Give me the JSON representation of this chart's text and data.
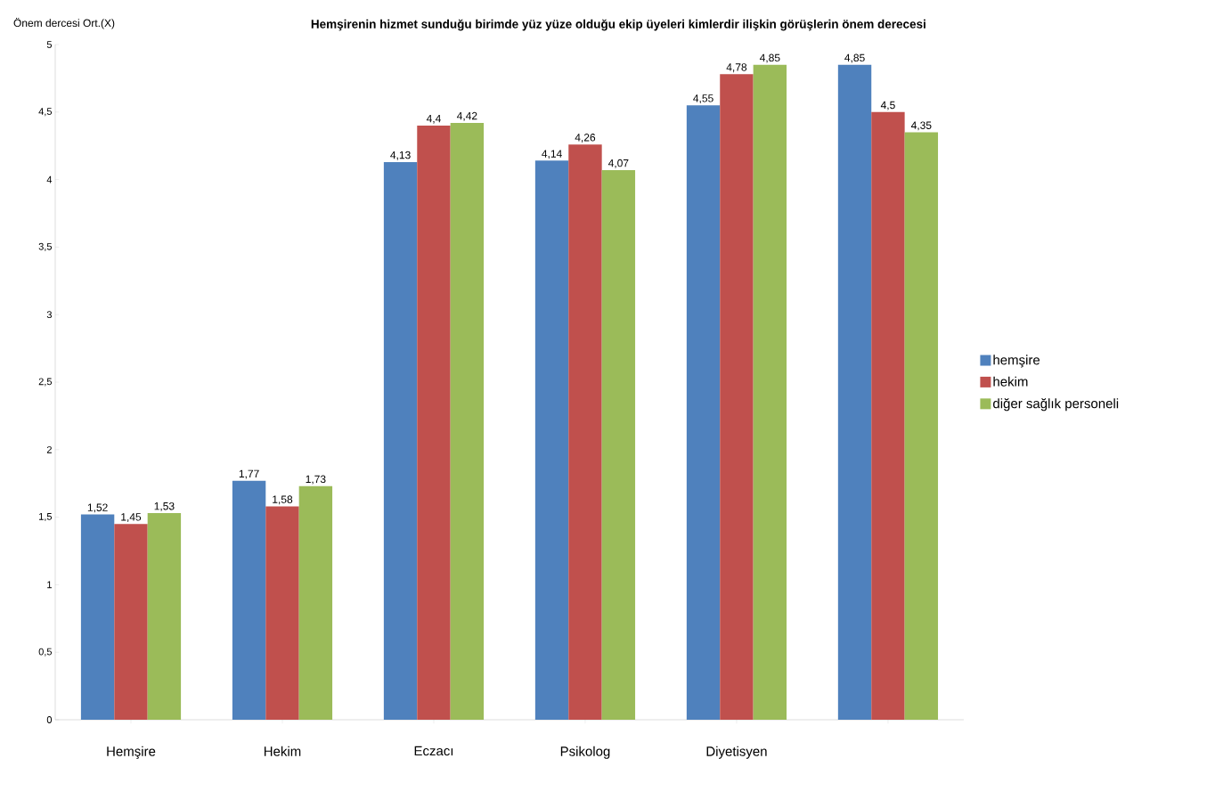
{
  "chart_data": {
    "type": "bar",
    "title": "Hemşirenin hizmet sunduğu birimde yüz yüze olduğu ekip üyeleri kimlerdir ilişkin görüşlerin önem derecesi",
    "ylabel": "Önem dercesi Ort.(X)",
    "categories": [
      "Hemşire",
      "Hekim",
      "Eczacı",
      "Psikolog",
      "Diyetisyen",
      null
    ],
    "series": [
      {
        "name": "hemşire",
        "color": "#4f81bd",
        "values": [
          1.52,
          1.77,
          4.13,
          4.14,
          4.55,
          4.85
        ],
        "value_labels": [
          "1,52",
          "1,77",
          "4,13",
          "4,14",
          "4,55",
          "4,85"
        ]
      },
      {
        "name": "hekim",
        "color": "#c0504d",
        "values": [
          1.45,
          1.58,
          4.4,
          4.26,
          4.78,
          4.5
        ],
        "value_labels": [
          "1,45",
          "1,58",
          "4,4",
          "4,26",
          "4,78",
          "4,5"
        ]
      },
      {
        "name": "diğer sağlık personeli",
        "color": "#9bbb59",
        "values": [
          1.53,
          1.73,
          4.42,
          4.07,
          4.85,
          4.35
        ],
        "value_labels": [
          "1,53",
          "1,73",
          "4,42",
          "4,07",
          "4,85",
          "4,35"
        ]
      }
    ],
    "ylim": [
      0,
      5
    ],
    "yticks": [
      0,
      {
        "value": 0.5,
        "label": "0,5"
      },
      1,
      {
        "value": 1.5,
        "label": "1,5"
      },
      2,
      {
        "value": 2.5,
        "label": "2,5"
      },
      3,
      {
        "value": 3.5,
        "label": "3,5"
      },
      4,
      {
        "value": 4.5,
        "label": "4,5"
      },
      5
    ],
    "legend": "right"
  }
}
